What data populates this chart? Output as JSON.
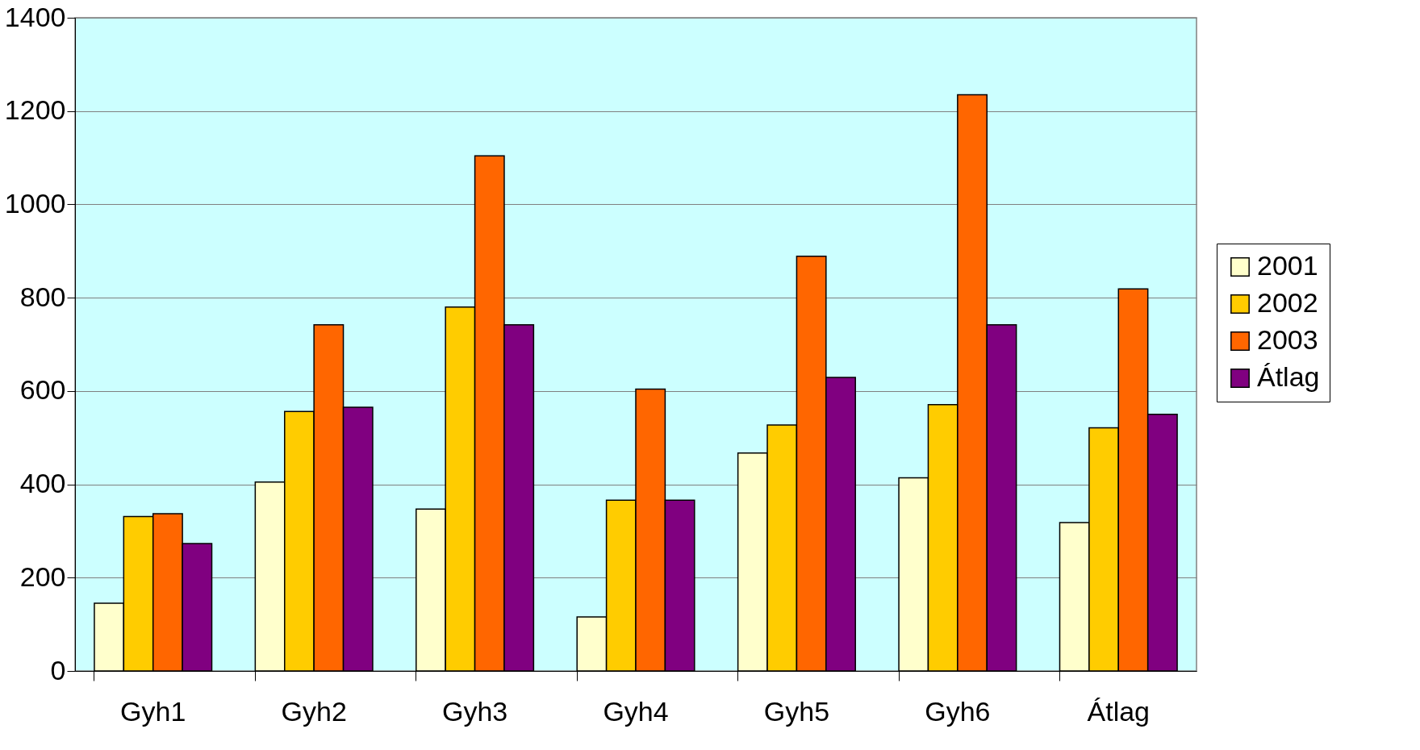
{
  "chart_data": {
    "type": "bar",
    "categories": [
      "Gyh1",
      "Gyh2",
      "Gyh3",
      "Gyh4",
      "Gyh5",
      "Gyh6",
      "Átlag"
    ],
    "series": [
      {
        "name": "2001",
        "color": "#ffffcc",
        "values": [
          145,
          405,
          347,
          116,
          467,
          414,
          318
        ]
      },
      {
        "name": "2002",
        "color": "#ffcc00",
        "values": [
          331,
          556,
          780,
          366,
          527,
          571,
          521
        ]
      },
      {
        "name": "2003",
        "color": "#ff6600",
        "values": [
          337,
          742,
          1104,
          604,
          889,
          1235,
          819
        ]
      },
      {
        "name": "Átlag",
        "color": "#800080",
        "values": [
          273,
          565,
          742,
          366,
          629,
          742,
          550
        ]
      }
    ],
    "ylim": [
      0,
      1400
    ],
    "yticks": [
      0,
      200,
      400,
      600,
      800,
      1000,
      1200,
      1400
    ],
    "grid": "y",
    "legend": "right"
  }
}
